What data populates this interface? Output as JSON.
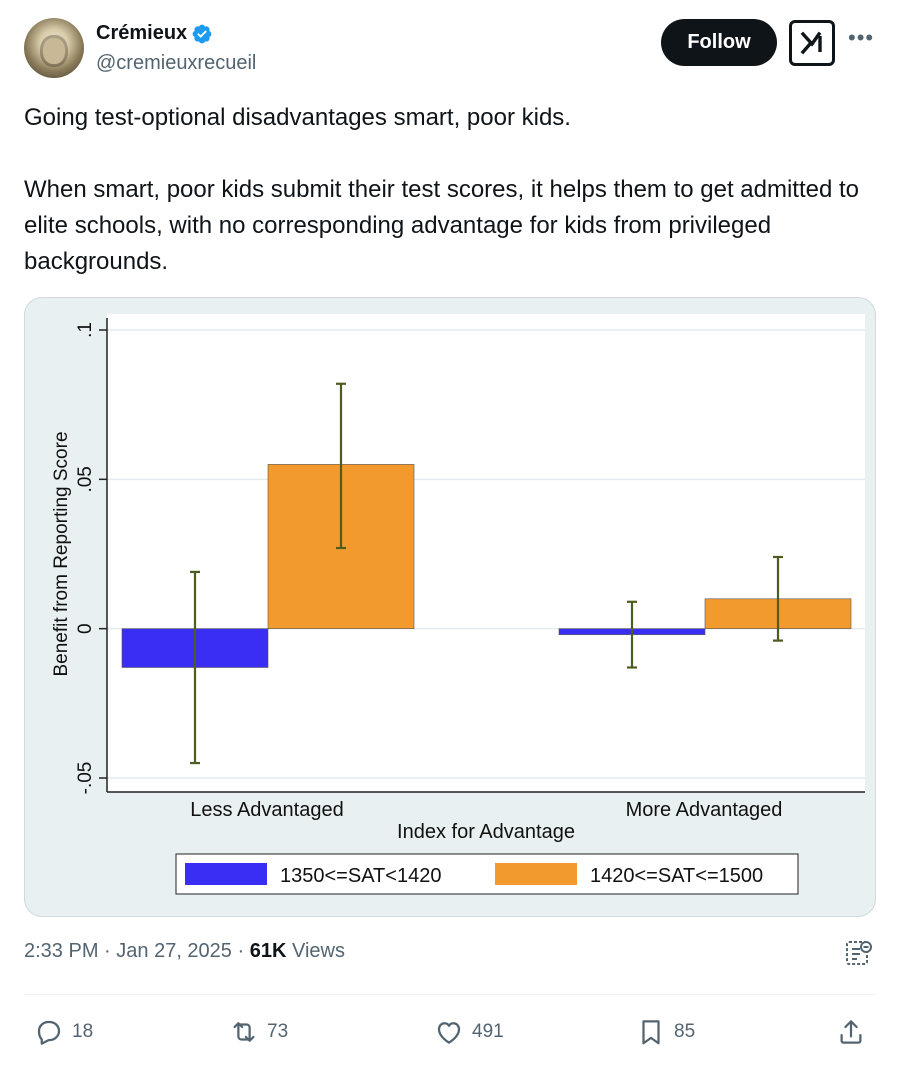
{
  "author": {
    "display_name": "Crémieux",
    "handle": "@cremieuxrecueil"
  },
  "header": {
    "follow_label": "Follow",
    "grok_icon": "grok-icon",
    "more_icon": "more-icon"
  },
  "tweet": {
    "line1": "Going test-optional disadvantages smart, poor kids.",
    "line2": "When smart, poor kids submit their test scores, it helps them to get admitted to elite schools, with no corresponding advantage for kids from privileged backgrounds."
  },
  "chart_data": {
    "type": "bar",
    "xlabel": "Index for Advantage",
    "ylabel": "Benefit from Reporting Score",
    "ylim": [
      -0.05,
      0.1
    ],
    "yticks": [
      -0.05,
      0,
      0.05,
      0.1
    ],
    "ytick_labels": [
      "-.05",
      "0",
      ".05",
      ".1"
    ],
    "categories": [
      "Less Advantaged",
      "More Advantaged"
    ],
    "series": [
      {
        "name": "1350<=SAT<1420",
        "values": [
          -0.013,
          -0.002
        ],
        "ci_low": [
          -0.045,
          -0.013
        ],
        "ci_high": [
          0.019,
          0.009
        ],
        "color": "#3a2ef5"
      },
      {
        "name": "1420<=SAT<=1500",
        "values": [
          0.055,
          0.01
        ],
        "ci_low": [
          0.027,
          -0.004
        ],
        "ci_high": [
          0.082,
          0.024
        ],
        "color": "#f29a2e"
      }
    ],
    "errorbar_color": "#4d5d1f",
    "legend_position": "bottom",
    "grid": true
  },
  "meta": {
    "time": "2:33 PM",
    "date": "Jan 27, 2025",
    "views_count": "61K",
    "views_label": "Views"
  },
  "actions": {
    "replies": "18",
    "reposts": "73",
    "likes": "491",
    "bookmarks": "85"
  }
}
